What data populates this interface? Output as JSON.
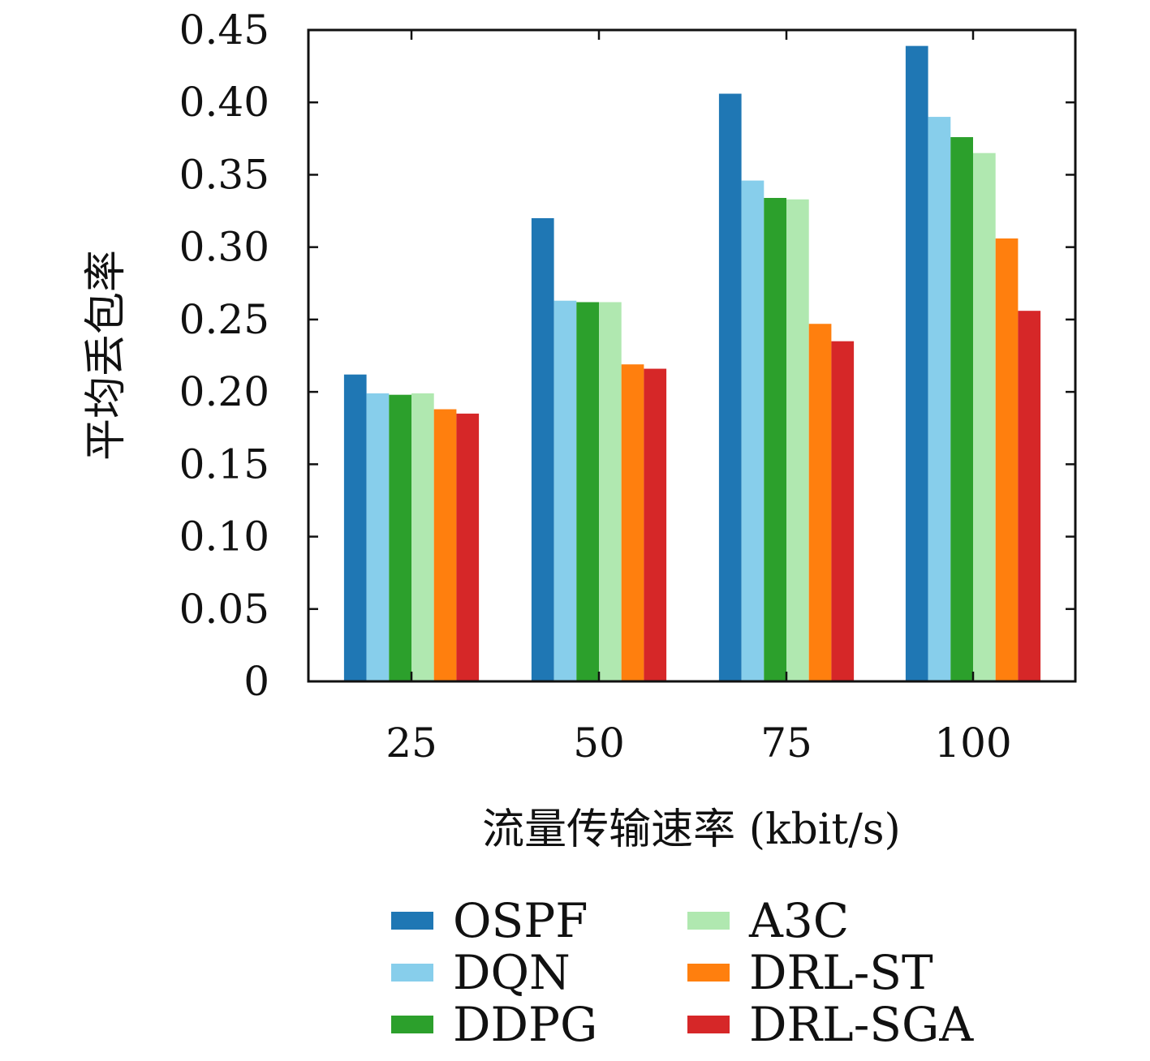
{
  "chart_data": {
    "type": "bar",
    "title": "",
    "xlabel": "流量传输速率 (kbit/s)",
    "ylabel": "平均丢包率",
    "categories": [
      "25",
      "50",
      "75",
      "100"
    ],
    "ylim": [
      0,
      0.45
    ],
    "yticks": [
      "0",
      "0.05",
      "0.10",
      "0.15",
      "0.20",
      "0.25",
      "0.30",
      "0.35",
      "0.40",
      "0.45"
    ],
    "grid": false,
    "legend_position": "bottom",
    "series": [
      {
        "name": "OSPF",
        "color": "#1f77b4",
        "values": [
          0.212,
          0.32,
          0.406,
          0.439
        ]
      },
      {
        "name": "DQN",
        "color": "#87ceeb",
        "values": [
          0.199,
          0.263,
          0.346,
          0.39
        ]
      },
      {
        "name": "DDPG",
        "color": "#2ca02c",
        "values": [
          0.198,
          0.262,
          0.334,
          0.376
        ]
      },
      {
        "name": "A3C",
        "color": "#b0e8b0",
        "values": [
          0.199,
          0.262,
          0.333,
          0.365
        ]
      },
      {
        "name": "DRL-ST",
        "color": "#ff7f0e",
        "values": [
          0.188,
          0.219,
          0.247,
          0.306
        ]
      },
      {
        "name": "DRL-SGA",
        "color": "#d62728",
        "values": [
          0.185,
          0.216,
          0.235,
          0.256
        ]
      }
    ]
  }
}
